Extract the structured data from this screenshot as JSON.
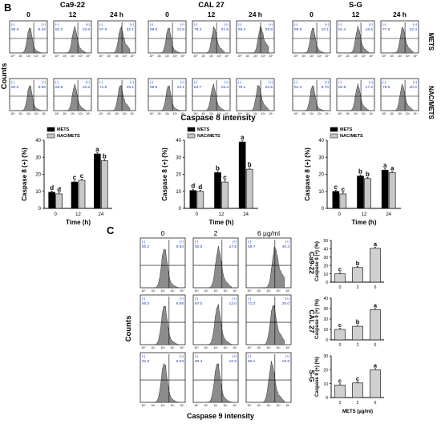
{
  "panels": {
    "B": {
      "label": "B",
      "groups": [
        "Ca9-22",
        "CAL 27",
        "S-G"
      ],
      "times": [
        "0",
        "12",
        "24 h"
      ],
      "row_labels": [
        "METS",
        "NAC/METS"
      ],
      "y_title": "Counts",
      "x_title": "Caspase 8 intensity",
      "gates": [
        [
          [
            {
              "neg": "90.6",
              "pos": "9.42"
            },
            {
              "neg": "84.2",
              "pos": "15.8"
            },
            {
              "neg": "67.9",
              "pos": "32.1"
            }
          ],
          [
            {
              "neg": "90.0",
              "pos": "9.96"
            },
            {
              "neg": "83.8",
              "pos": "16.2"
            },
            {
              "neg": "71.9",
              "pos": "28.1"
            }
          ]
        ],
        [
          [
            {
              "neg": "89.5",
              "pos": "10.5"
            },
            {
              "neg": "78.4",
              "pos": "21.6"
            },
            {
              "neg": "60.2",
              "pos": "39.8"
            }
          ],
          [
            {
              "neg": "89.9",
              "pos": "10.1"
            },
            {
              "neg": "84.7",
              "pos": "15.3"
            },
            {
              "neg": "76.1",
              "pos": "23.9"
            }
          ]
        ],
        [
          [
            {
              "neg": "89.9",
              "pos": "10.1"
            },
            {
              "neg": "81.4",
              "pos": "18.6"
            },
            {
              "neg": "77.6",
              "pos": "22.4"
            }
          ],
          [
            {
              "neg": "91.3",
              "pos": "8.70"
            },
            {
              "neg": "82.8",
              "pos": "17.2"
            },
            {
              "neg": "79.8",
              "pos": "20.2"
            }
          ]
        ]
      ]
    },
    "C": {
      "label": "C",
      "doses": [
        "0",
        "2",
        "6 µg/ml"
      ],
      "row_labels": [
        "Ca9-22",
        "CAL 27",
        "S-G"
      ],
      "y_title": "Counts",
      "x_title": "Caspase 9 intensity",
      "gates": [
        [
          {
            "neg": "90.2",
            "pos": "9.84"
          },
          {
            "neg": "82.5",
            "pos": "17.5"
          },
          {
            "neg": "59.7",
            "pos": "40.3"
          }
        ],
        [
          {
            "neg": "90.0",
            "pos": "9.98"
          },
          {
            "neg": "87.0",
            "pos": "13.0"
          },
          {
            "neg": "71.0",
            "pos": "29.0"
          }
        ],
        [
          {
            "neg": "91.0",
            "pos": "9.03"
          },
          {
            "neg": "89.4",
            "pos": "10.6"
          },
          {
            "neg": "80.1",
            "pos": "19.9"
          }
        ]
      ]
    }
  },
  "gate_neg_symbol": "(-)",
  "gate_pos_symbol": "(+)",
  "hist_colors": {
    "fill": "#8c8c8c",
    "label_blue": "#1f3fbf"
  },
  "axis_tick_labels": [
    "10⁰",
    "10¹",
    "10²",
    "10³",
    "10⁴"
  ],
  "chart_data": [
    {
      "type": "bar",
      "panel": "B",
      "group": "Ca9-22",
      "categories": [
        "0",
        "12",
        "24"
      ],
      "xlabel": "Time (h)",
      "ylabel": "Caspase 8 (+) (%)",
      "ylim": [
        0,
        40
      ],
      "yticks": [
        0,
        10,
        20,
        30,
        40
      ],
      "legend_position": "top-left",
      "series": [
        {
          "name": "METS",
          "color": "#000000",
          "values": [
            9.5,
            15.5,
            32
          ],
          "letters": [
            "d",
            "c",
            "a"
          ]
        },
        {
          "name": "NAC/METS",
          "color": "#c8c8c8",
          "values": [
            8.5,
            16.5,
            28
          ],
          "letters": [
            "d",
            "c",
            "b"
          ]
        }
      ]
    },
    {
      "type": "bar",
      "panel": "B",
      "group": "CAL 27",
      "categories": [
        "0",
        "12",
        "24"
      ],
      "xlabel": "Time (h)",
      "ylabel": "Caspase 8 (+) (%)",
      "ylim": [
        0,
        40
      ],
      "yticks": [
        0,
        10,
        20,
        30,
        40
      ],
      "legend_position": "top-left",
      "series": [
        {
          "name": "METS",
          "color": "#000000",
          "values": [
            10.5,
            21,
            39
          ],
          "letters": [
            "d",
            "b",
            "a"
          ]
        },
        {
          "name": "NAC/METS",
          "color": "#c8c8c8",
          "values": [
            10,
            15.5,
            23
          ],
          "letters": [
            "d",
            "c",
            "b"
          ]
        }
      ]
    },
    {
      "type": "bar",
      "panel": "B",
      "group": "S-G",
      "categories": [
        "0",
        "12",
        "24"
      ],
      "xlabel": "Time (h)",
      "ylabel": "Caspase 8 (+) (%)",
      "ylim": [
        0,
        40
      ],
      "yticks": [
        0,
        10,
        20,
        30,
        40
      ],
      "legend_position": "top-left",
      "series": [
        {
          "name": "METS",
          "color": "#000000",
          "values": [
            10,
            19,
            22.5
          ],
          "letters": [
            "c",
            "b",
            "a"
          ]
        },
        {
          "name": "NAC/METS",
          "color": "#c8c8c8",
          "values": [
            8.5,
            17.5,
            21
          ],
          "letters": [
            "c",
            "b",
            "a"
          ]
        }
      ]
    },
    {
      "type": "bar",
      "panel": "C",
      "group": "Ca9-22",
      "categories": [
        "0",
        "2",
        "6"
      ],
      "xlabel": "",
      "ylabel": "Caspase 9 (+) (%)",
      "ylim": [
        0,
        50
      ],
      "yticks": [
        0,
        10,
        20,
        30,
        40,
        50
      ],
      "series": [
        {
          "name": "",
          "color": "#d0d0d0",
          "values": [
            10,
            17.5,
            40.5
          ],
          "letters": [
            "c",
            "b",
            "a"
          ]
        }
      ]
    },
    {
      "type": "bar",
      "panel": "C",
      "group": "CAL 27",
      "categories": [
        "0",
        "2",
        "6"
      ],
      "xlabel": "",
      "ylabel": "Caspase 9 (+) (%)",
      "ylim": [
        0,
        40
      ],
      "yticks": [
        0,
        10,
        20,
        30,
        40
      ],
      "series": [
        {
          "name": "",
          "color": "#d0d0d0",
          "values": [
            10,
            13,
            29
          ],
          "letters": [
            "c",
            "b",
            "a"
          ]
        }
      ]
    },
    {
      "type": "bar",
      "panel": "C",
      "group": "S-G",
      "categories": [
        "0",
        "2",
        "6"
      ],
      "xlabel": "METS (µg/ml)",
      "ylabel": "Caspase 9 (+) (%)",
      "ylim": [
        0,
        30
      ],
      "yticks": [
        0,
        10,
        20,
        30
      ],
      "series": [
        {
          "name": "",
          "color": "#d0d0d0",
          "values": [
            9,
            10.5,
            20
          ],
          "letters": [
            "c",
            "c",
            "a"
          ]
        }
      ]
    }
  ]
}
